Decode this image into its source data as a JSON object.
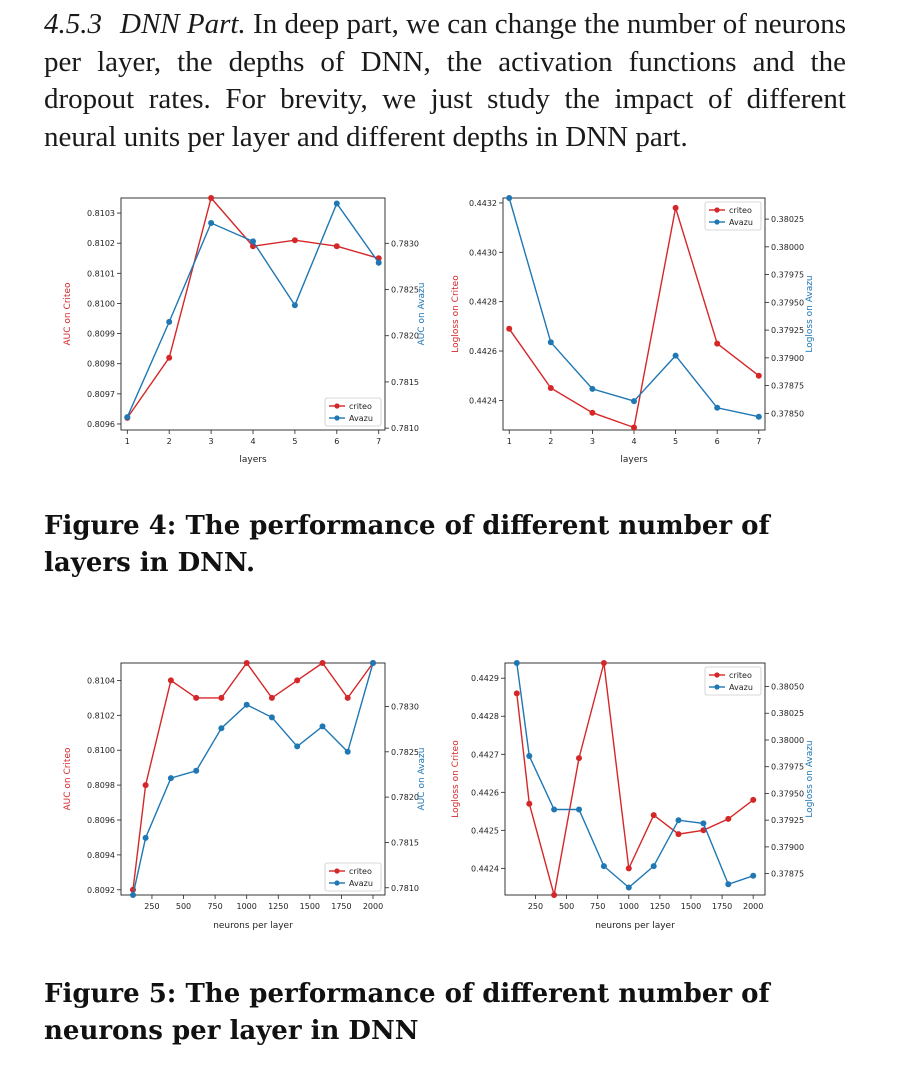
{
  "section": {
    "number": "4.5.3",
    "title": "DNN Part.",
    "body": "In deep part, we can change the number of neurons per layer, the depths of DNN, the activation functions and the dropout rates. For brevity, we just study the impact of different neural units per layer and different depths in DNN part."
  },
  "figure4": {
    "caption": "Figure 4: The performance of different number of layers in DNN."
  },
  "figure5": {
    "caption": "Figure 5: The performance of different number of neurons per layer in DNN"
  },
  "colors": {
    "criteo": "#d62728",
    "avazu": "#1f77b4"
  },
  "chart_data": [
    {
      "type": "line",
      "figure": "Figure 4",
      "panel": "left",
      "xlabel": "layers",
      "ylabel_left": "AUC on Criteo",
      "ylabel_right": "AUC on Avazu",
      "x": [
        1,
        2,
        3,
        4,
        5,
        6,
        7
      ],
      "xlim": [
        0.85,
        7.15
      ],
      "xticks": [
        1,
        2,
        3,
        4,
        5,
        6,
        7
      ],
      "ylim_left": [
        0.80958,
        0.81035
      ],
      "yticks_left": [
        0.8096,
        0.8097,
        0.8098,
        0.8099,
        0.81,
        0.8101,
        0.8102,
        0.8103
      ],
      "ytick_labels_left": [
        "0.8096",
        "0.8097",
        "0.8098",
        "0.8099",
        "0.8100",
        "0.8101",
        "0.8102",
        "0.8103"
      ],
      "ylim_right": [
        0.78098,
        0.78349
      ],
      "yticks_right": [
        0.781,
        0.7815,
        0.782,
        0.7825,
        0.783
      ],
      "ytick_labels_right": [
        "0.7810",
        "0.7815",
        "0.7820",
        "0.7825",
        "0.7830"
      ],
      "legend": "lower-right",
      "series": [
        {
          "name": "criteo",
          "axis": "left",
          "values": [
            0.80962,
            0.80982,
            0.81035,
            0.81019,
            0.81021,
            0.81019,
            0.81015
          ]
        },
        {
          "name": "Avazu",
          "axis": "right",
          "values": [
            0.78112,
            0.78215,
            0.78322,
            0.78302,
            0.78233,
            0.78343,
            0.78279
          ]
        }
      ]
    },
    {
      "type": "line",
      "figure": "Figure 4",
      "panel": "right",
      "xlabel": "layers",
      "ylabel_left": "Logloss on Criteo",
      "ylabel_right": "Logloss on Avazu",
      "x": [
        1,
        2,
        3,
        4,
        5,
        6,
        7
      ],
      "xlim": [
        0.85,
        7.15
      ],
      "xticks": [
        1,
        2,
        3,
        4,
        5,
        6,
        7
      ],
      "ylim_left": [
        0.44228,
        0.44322
      ],
      "yticks_left": [
        0.4424,
        0.4426,
        0.4428,
        0.443,
        0.4432
      ],
      "ytick_labels_left": [
        "0.4424",
        "0.4426",
        "0.4428",
        "0.4430",
        "0.4432"
      ],
      "ylim_right": [
        0.37835,
        0.38044
      ],
      "yticks_right": [
        0.3785,
        0.37875,
        0.379,
        0.37925,
        0.3795,
        0.37975,
        0.38,
        0.38025
      ],
      "ytick_labels_right": [
        "0.37850",
        "0.37875",
        "0.37900",
        "0.37925",
        "0.37950",
        "0.37975",
        "0.38000",
        "0.38025"
      ],
      "legend": "upper-right",
      "series": [
        {
          "name": "criteo",
          "axis": "left",
          "values": [
            0.44269,
            0.44245,
            0.44235,
            0.44229,
            0.44318,
            0.44263,
            0.4425
          ]
        },
        {
          "name": "Avazu",
          "axis": "right",
          "values": [
            0.38044,
            0.37914,
            0.37872,
            0.37861,
            0.37902,
            0.37855,
            0.37847
          ]
        }
      ]
    },
    {
      "type": "line",
      "figure": "Figure 5",
      "panel": "left",
      "xlabel": "neurons per layer",
      "ylabel_left": "AUC on Criteo",
      "ylabel_right": "AUC on Avazu",
      "x": [
        100,
        200,
        400,
        600,
        800,
        1000,
        1200,
        1400,
        1600,
        1800,
        2000
      ],
      "xlim": [
        5,
        2095
      ],
      "xticks": [
        250,
        500,
        750,
        1000,
        1250,
        1500,
        1750,
        2000
      ],
      "ylim_left": [
        0.80917,
        0.8105
      ],
      "yticks_left": [
        0.8092,
        0.8094,
        0.8096,
        0.8098,
        0.81,
        0.8102,
        0.8104
      ],
      "ytick_labels_left": [
        "0.8092",
        "0.8094",
        "0.8096",
        "0.8098",
        "0.8100",
        "0.8102",
        "0.8104"
      ],
      "ylim_right": [
        0.78092,
        0.78348
      ],
      "yticks_right": [
        0.781,
        0.7815,
        0.782,
        0.7825,
        0.783
      ],
      "ytick_labels_right": [
        "0.7810",
        "0.7815",
        "0.7820",
        "0.7825",
        "0.7830"
      ],
      "legend": "lower-right",
      "series": [
        {
          "name": "criteo",
          "axis": "left",
          "values": [
            0.8092,
            0.8098,
            0.8104,
            0.8103,
            0.8103,
            0.8105,
            0.8103,
            0.8104,
            0.8105,
            0.8103,
            0.8105
          ]
        },
        {
          "name": "Avazu",
          "axis": "right",
          "values": [
            0.78092,
            0.78155,
            0.78221,
            0.78229,
            0.78276,
            0.78302,
            0.78288,
            0.78256,
            0.78278,
            0.7825,
            0.78348
          ]
        }
      ]
    },
    {
      "type": "line",
      "figure": "Figure 5",
      "panel": "right",
      "xlabel": "neurons per layer",
      "ylabel_left": "Logloss on Criteo",
      "ylabel_right": "Logloss on Avazu",
      "x": [
        100,
        200,
        400,
        600,
        800,
        1000,
        1200,
        1400,
        1600,
        1800,
        2000
      ],
      "xlim": [
        5,
        2095
      ],
      "xticks": [
        250,
        500,
        750,
        1000,
        1250,
        1500,
        1750,
        2000
      ],
      "ylim_left": [
        0.44233,
        0.44294
      ],
      "yticks_left": [
        0.4424,
        0.4425,
        0.4426,
        0.4427,
        0.4428,
        0.4429
      ],
      "ytick_labels_left": [
        "0.4424",
        "0.4425",
        "0.4426",
        "0.4427",
        "0.4428",
        "0.4429"
      ],
      "ylim_right": [
        0.37855,
        0.38072
      ],
      "yticks_right": [
        0.37875,
        0.379,
        0.37925,
        0.3795,
        0.37975,
        0.38,
        0.38025,
        0.3805
      ],
      "ytick_labels_right": [
        "0.37875",
        "0.37900",
        "0.37925",
        "0.37950",
        "0.37975",
        "0.38000",
        "0.38025",
        "0.38050"
      ],
      "legend": "upper-right",
      "series": [
        {
          "name": "criteo",
          "axis": "left",
          "values": [
            0.44286,
            0.44257,
            0.44233,
            0.44269,
            0.44294,
            0.4424,
            0.44254,
            0.44249,
            0.4425,
            0.44253,
            0.44258
          ]
        },
        {
          "name": "Avazu",
          "axis": "right",
          "values": [
            0.38072,
            0.37985,
            0.37935,
            0.37935,
            0.37882,
            0.37862,
            0.37882,
            0.37925,
            0.37922,
            0.37865,
            0.37873
          ]
        }
      ]
    }
  ]
}
